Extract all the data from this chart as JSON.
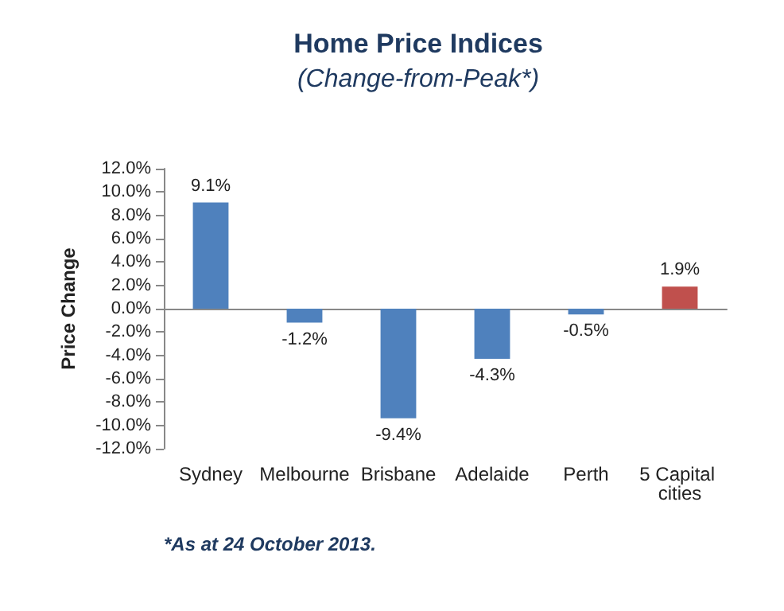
{
  "chart_data": {
    "type": "bar",
    "title": "Home Price Indices",
    "subtitle": "(Change-from-Peak*)",
    "ylabel": "Price Change",
    "annotations": [
      "*As at 24 October 2013."
    ],
    "categories": [
      "Sydney",
      "Melbourne",
      "Brisbane",
      "Adelaide",
      "Perth",
      "5 Capital cities"
    ],
    "values": [
      9.1,
      -1.2,
      -9.4,
      -4.3,
      -0.5,
      1.9
    ],
    "colors": [
      "#4f81bd",
      "#4f81bd",
      "#4f81bd",
      "#4f81bd",
      "#4f81bd",
      "#c0504d"
    ],
    "value_labels": [
      "9.1%",
      "-1.2%",
      "-9.4%",
      "-4.3%",
      "-0.5%",
      "1.9%"
    ],
    "ylim": [
      -12,
      12
    ],
    "yticks": [
      {
        "value": -12,
        "label": "-12.0%"
      },
      {
        "value": -10,
        "label": "-10.0%"
      },
      {
        "value": -8,
        "label": "-8.0%"
      },
      {
        "value": -6,
        "label": "-6.0%"
      },
      {
        "value": -4,
        "label": "-4.0%"
      },
      {
        "value": -2,
        "label": "-2.0%"
      },
      {
        "value": 0,
        "label": "0.0%"
      },
      {
        "value": 2,
        "label": "2.0%"
      },
      {
        "value": 4,
        "label": "4.0%"
      },
      {
        "value": 6,
        "label": "6.0%"
      },
      {
        "value": 8,
        "label": "8.0%"
      },
      {
        "value": 10,
        "label": "10.0%"
      },
      {
        "value": 12,
        "label": "12.0%"
      }
    ]
  }
}
